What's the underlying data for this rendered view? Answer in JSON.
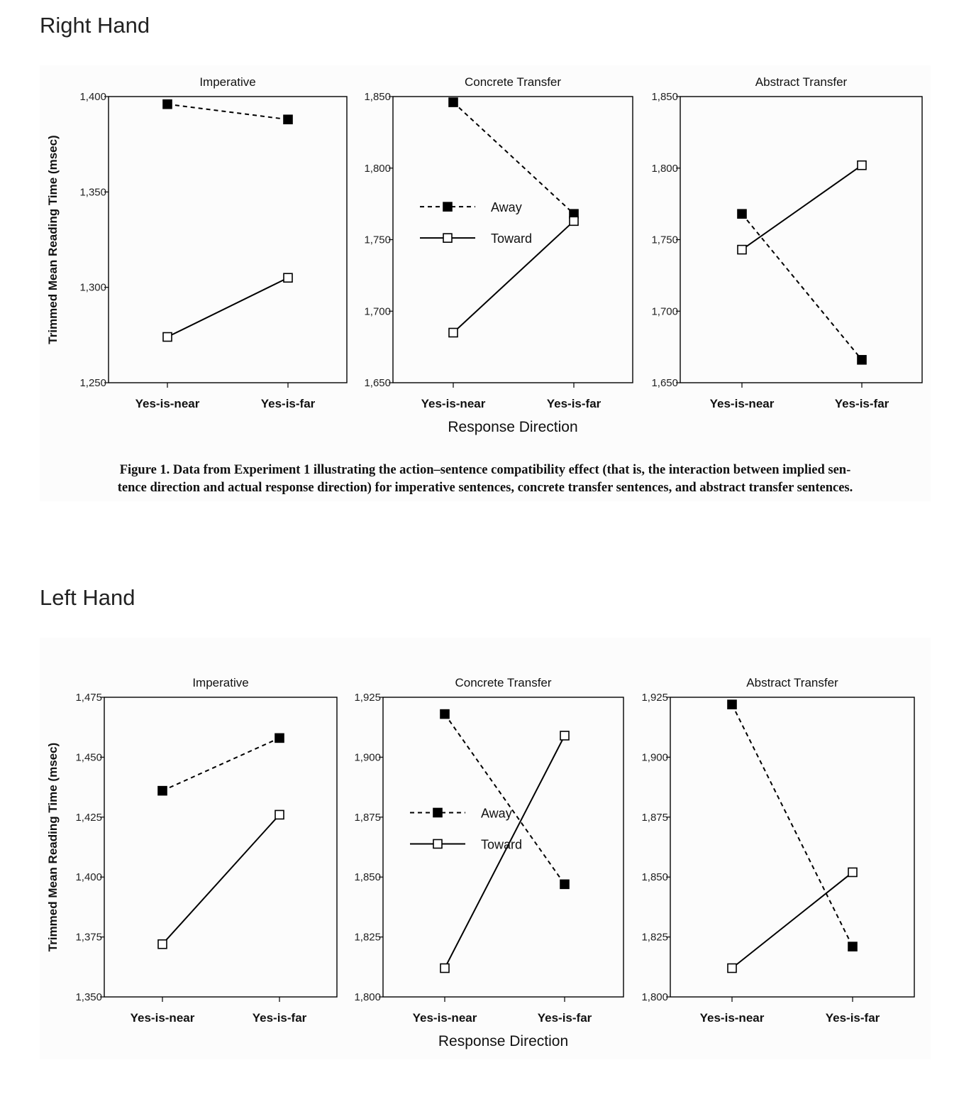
{
  "sections": [
    {
      "heading": "Right Hand",
      "caption_line1": "Figure 1. Data from Experiment 1 illustrating the action–sentence compatibility effect (that is, the interaction between implied sen-",
      "caption_line2": "tence direction and actual response direction) for imperative sentences, concrete transfer sentences, and abstract transfer sentences."
    },
    {
      "heading": "Left Hand"
    }
  ],
  "chart_data": [
    {
      "type": "line",
      "figure": "Right Hand",
      "title": "Imperative",
      "categories": [
        "Yes-is-near",
        "Yes-is-far"
      ],
      "ylabel": "Trimmed Mean Reading Time (msec)",
      "xlabel": "",
      "ylim": [
        1250,
        1400
      ],
      "yticks": [
        1250,
        1300,
        1350,
        1400
      ],
      "ytick_labels": [
        "1,250",
        "1,300",
        "1,350",
        "1,400"
      ],
      "legend": false,
      "series": [
        {
          "name": "Away",
          "style": "dashed",
          "marker": "filled-square",
          "values": [
            1396,
            1388
          ]
        },
        {
          "name": "Toward",
          "style": "solid",
          "marker": "open-square",
          "values": [
            1274,
            1305
          ]
        }
      ]
    },
    {
      "type": "line",
      "figure": "Right Hand",
      "title": "Concrete Transfer",
      "categories": [
        "Yes-is-near",
        "Yes-is-far"
      ],
      "ylabel": "",
      "xlabel": "Response Direction",
      "ylim": [
        1650,
        1850
      ],
      "yticks": [
        1650,
        1700,
        1750,
        1800,
        1850
      ],
      "ytick_labels": [
        "1,650",
        "1,700",
        "1,750",
        "1,800",
        "1,850"
      ],
      "legend": true,
      "legend_placement": "left-middle",
      "series": [
        {
          "name": "Away",
          "style": "dashed",
          "marker": "filled-square",
          "values": [
            1846,
            1768
          ]
        },
        {
          "name": "Toward",
          "style": "solid",
          "marker": "open-square",
          "values": [
            1685,
            1763
          ]
        }
      ]
    },
    {
      "type": "line",
      "figure": "Right Hand",
      "title": "Abstract Transfer",
      "categories": [
        "Yes-is-near",
        "Yes-is-far"
      ],
      "ylabel": "",
      "xlabel": "",
      "ylim": [
        1650,
        1850
      ],
      "yticks": [
        1650,
        1700,
        1750,
        1800,
        1850
      ],
      "ytick_labels": [
        "1,650",
        "1,700",
        "1,750",
        "1,800",
        "1,850"
      ],
      "legend": false,
      "series": [
        {
          "name": "Away",
          "style": "dashed",
          "marker": "filled-square",
          "values": [
            1768,
            1666
          ]
        },
        {
          "name": "Toward",
          "style": "solid",
          "marker": "open-square",
          "values": [
            1743,
            1802
          ]
        }
      ]
    },
    {
      "type": "line",
      "figure": "Left Hand",
      "title": "Imperative",
      "categories": [
        "Yes-is-near",
        "Yes-is-far"
      ],
      "ylabel": "Trimmed Mean Reading Time (msec)",
      "xlabel": "",
      "ylim": [
        1350,
        1475
      ],
      "yticks": [
        1350,
        1375,
        1400,
        1425,
        1450,
        1475
      ],
      "ytick_labels": [
        "1,350",
        "1,375",
        "1,400",
        "1,425",
        "1,450",
        "1,475"
      ],
      "legend": false,
      "series": [
        {
          "name": "Away",
          "style": "dashed",
          "marker": "filled-square",
          "values": [
            1436,
            1458
          ]
        },
        {
          "name": "Toward",
          "style": "solid",
          "marker": "open-square",
          "values": [
            1372,
            1426
          ]
        }
      ]
    },
    {
      "type": "line",
      "figure": "Left Hand",
      "title": "Concrete Transfer",
      "categories": [
        "Yes-is-near",
        "Yes-is-far"
      ],
      "ylabel": "",
      "xlabel": "Response Direction",
      "ylim": [
        1800,
        1925
      ],
      "yticks": [
        1800,
        1825,
        1850,
        1875,
        1900,
        1925
      ],
      "ytick_labels": [
        "1,800",
        "1,825",
        "1,850",
        "1,875",
        "1,900",
        "1,925"
      ],
      "legend": true,
      "legend_placement": "left-middle",
      "series": [
        {
          "name": "Away",
          "style": "dashed",
          "marker": "filled-square",
          "values": [
            1918,
            1847
          ]
        },
        {
          "name": "Toward",
          "style": "solid",
          "marker": "open-square",
          "values": [
            1812,
            1909
          ]
        }
      ]
    },
    {
      "type": "line",
      "figure": "Left Hand",
      "title": "Abstract Transfer",
      "categories": [
        "Yes-is-near",
        "Yes-is-far"
      ],
      "ylabel": "",
      "xlabel": "",
      "ylim": [
        1800,
        1925
      ],
      "yticks": [
        1800,
        1825,
        1850,
        1875,
        1900,
        1925
      ],
      "ytick_labels": [
        "1,800",
        "1,825",
        "1,850",
        "1,875",
        "1,900",
        "1,925"
      ],
      "legend": false,
      "series": [
        {
          "name": "Away",
          "style": "dashed",
          "marker": "filled-square",
          "values": [
            1922,
            1821
          ]
        },
        {
          "name": "Toward",
          "style": "solid",
          "marker": "open-square",
          "values": [
            1812,
            1852
          ]
        }
      ]
    }
  ]
}
